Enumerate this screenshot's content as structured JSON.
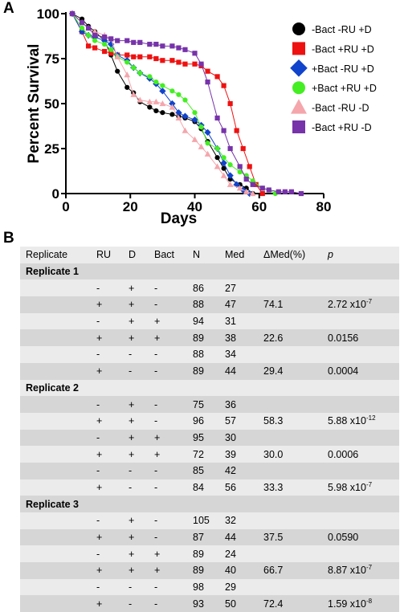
{
  "panels": {
    "a": "A",
    "b": "B"
  },
  "chart_data": {
    "type": "line",
    "xlabel": "Days",
    "ylabel": "Percent Survival",
    "xlim": [
      0,
      80
    ],
    "ylim": [
      0,
      100
    ],
    "xticks": [
      0,
      20,
      40,
      60,
      80
    ],
    "yticks": [
      0,
      25,
      50,
      75,
      100
    ],
    "grid": false,
    "legend": "right",
    "series": [
      {
        "name": "-Bact -RU +D",
        "color": "#000000",
        "marker": "circle",
        "x": [
          2,
          5,
          7,
          9,
          12,
          14,
          16,
          19,
          21,
          23,
          26,
          28,
          30,
          33,
          35,
          37,
          40,
          42,
          44,
          47,
          49,
          51,
          54,
          56,
          58
        ],
        "y": [
          100,
          97,
          93,
          90,
          85,
          77,
          68,
          59,
          56,
          51,
          48,
          46,
          45,
          44,
          43,
          42,
          40,
          36,
          29,
          20,
          14,
          8,
          5,
          3,
          0
        ]
      },
      {
        "name": "-Bact +RU +D",
        "color": "#ee1111",
        "marker": "square",
        "x": [
          2,
          5,
          7,
          9,
          12,
          14,
          16,
          19,
          21,
          23,
          26,
          28,
          30,
          33,
          35,
          37,
          40,
          42,
          44,
          47,
          49,
          51,
          53,
          55,
          57,
          59,
          61
        ],
        "y": [
          100,
          90,
          82,
          81,
          79,
          78,
          77,
          77,
          76,
          76,
          76,
          75,
          74,
          74,
          73,
          72,
          72,
          71,
          68,
          65,
          60,
          50,
          35,
          25,
          15,
          5,
          0
        ]
      },
      {
        "name": "+Bact -RU +D",
        "color": "#1144cc",
        "marker": "diamond",
        "x": [
          2,
          5,
          7,
          9,
          12,
          14,
          16,
          19,
          21,
          23,
          26,
          28,
          30,
          33,
          35,
          37,
          40,
          42,
          44,
          47,
          49,
          51,
          53,
          55,
          57
        ],
        "y": [
          100,
          90,
          88,
          87,
          85,
          83,
          77,
          74,
          70,
          67,
          64,
          61,
          57,
          50,
          45,
          43,
          41,
          38,
          34,
          25,
          17,
          10,
          5,
          2,
          0
        ]
      },
      {
        "name": "+Bact +RU +D",
        "color": "#44ee22",
        "marker": "circle",
        "x": [
          2,
          5,
          7,
          9,
          12,
          14,
          16,
          19,
          21,
          23,
          26,
          28,
          30,
          33,
          35,
          37,
          40,
          42,
          44,
          47,
          49,
          51,
          54,
          56,
          58,
          61,
          63,
          65
        ],
        "y": [
          100,
          92,
          88,
          85,
          83,
          80,
          76,
          73,
          70,
          67,
          65,
          62,
          60,
          57,
          55,
          52,
          45,
          37,
          28,
          25,
          20,
          16,
          12,
          10,
          7,
          3,
          2,
          0
        ]
      },
      {
        "name": "-Bact -RU -D",
        "color": "#f4a6ac",
        "marker": "triangle",
        "x": [
          2,
          5,
          7,
          9,
          12,
          14,
          16,
          19,
          21,
          23,
          26,
          28,
          30,
          33,
          35,
          37,
          40,
          42,
          44,
          47,
          49,
          51,
          54,
          56,
          58
        ],
        "y": [
          100,
          95,
          92,
          90,
          88,
          86,
          76,
          66,
          55,
          52,
          51,
          51,
          50,
          48,
          42,
          35,
          30,
          26,
          22,
          15,
          10,
          5,
          3,
          1,
          0
        ]
      },
      {
        "name": "-Bact +RU -D",
        "color": "#7733aa",
        "marker": "square",
        "x": [
          2,
          5,
          7,
          9,
          12,
          14,
          16,
          19,
          21,
          23,
          26,
          28,
          30,
          33,
          35,
          37,
          40,
          42,
          44,
          47,
          49,
          51,
          54,
          56,
          58,
          61,
          63,
          66,
          68,
          70,
          73
        ],
        "y": [
          100,
          95,
          92,
          88,
          87,
          86,
          85,
          85,
          84,
          84,
          83,
          83,
          82,
          82,
          81,
          80,
          78,
          72,
          62,
          42,
          35,
          25,
          15,
          8,
          5,
          3,
          2,
          1,
          1,
          1,
          0
        ]
      }
    ]
  },
  "table": {
    "headers": [
      "Replicate",
      "RU",
      "D",
      "Bact",
      "N",
      "Med",
      "ΔMed(%)",
      "p"
    ],
    "replicates": [
      {
        "label": "Replicate 1",
        "rows": [
          {
            "ru": "-",
            "d": "+",
            "bact": "-",
            "n": "86",
            "med": "27",
            "dmed": "",
            "p_base": "",
            "p_exp": ""
          },
          {
            "ru": "+",
            "d": "+",
            "bact": "-",
            "n": "88",
            "med": "47",
            "dmed": "74.1",
            "p_base": "2.72 x10",
            "p_exp": "-7"
          },
          {
            "ru": "-",
            "d": "+",
            "bact": "+",
            "n": "94",
            "med": "31",
            "dmed": "",
            "p_base": "",
            "p_exp": ""
          },
          {
            "ru": "+",
            "d": "+",
            "bact": "+",
            "n": "89",
            "med": "38",
            "dmed": "22.6",
            "p_base": "0.0156",
            "p_exp": ""
          },
          {
            "ru": "-",
            "d": "-",
            "bact": "-",
            "n": "88",
            "med": "34",
            "dmed": "",
            "p_base": "",
            "p_exp": ""
          },
          {
            "ru": "+",
            "d": "-",
            "bact": "-",
            "n": "89",
            "med": "44",
            "dmed": "29.4",
            "p_base": "0.0004",
            "p_exp": ""
          }
        ]
      },
      {
        "label": "Replicate 2",
        "rows": [
          {
            "ru": "-",
            "d": "+",
            "bact": "-",
            "n": "75",
            "med": "36",
            "dmed": "",
            "p_base": "",
            "p_exp": ""
          },
          {
            "ru": "+",
            "d": "+",
            "bact": "-",
            "n": "96",
            "med": "57",
            "dmed": "58.3",
            "p_base": "5.88 x10",
            "p_exp": "-12"
          },
          {
            "ru": "-",
            "d": "+",
            "bact": "+",
            "n": "95",
            "med": "30",
            "dmed": "",
            "p_base": "",
            "p_exp": ""
          },
          {
            "ru": "+",
            "d": "+",
            "bact": "+",
            "n": "72",
            "med": "39",
            "dmed": "30.0",
            "p_base": "0.0006",
            "p_exp": ""
          },
          {
            "ru": "-",
            "d": "-",
            "bact": "-",
            "n": "85",
            "med": "42",
            "dmed": "",
            "p_base": "",
            "p_exp": ""
          },
          {
            "ru": "+",
            "d": "-",
            "bact": "-",
            "n": "84",
            "med": "56",
            "dmed": "33.3",
            "p_base": "5.98 x10",
            "p_exp": "-7"
          }
        ]
      },
      {
        "label": "Replicate 3",
        "rows": [
          {
            "ru": "-",
            "d": "+",
            "bact": "-",
            "n": "105",
            "med": "32",
            "dmed": "",
            "p_base": "",
            "p_exp": ""
          },
          {
            "ru": "+",
            "d": "+",
            "bact": "-",
            "n": "87",
            "med": "44",
            "dmed": "37.5",
            "p_base": "0.0590",
            "p_exp": ""
          },
          {
            "ru": "-",
            "d": "+",
            "bact": "+",
            "n": "89",
            "med": "24",
            "dmed": "",
            "p_base": "",
            "p_exp": ""
          },
          {
            "ru": "+",
            "d": "+",
            "bact": "+",
            "n": "89",
            "med": "40",
            "dmed": "66.7",
            "p_base": "8.87 x10",
            "p_exp": "-7"
          },
          {
            "ru": "-",
            "d": "-",
            "bact": "-",
            "n": "98",
            "med": "29",
            "dmed": "",
            "p_base": "",
            "p_exp": ""
          },
          {
            "ru": "+",
            "d": "-",
            "bact": "-",
            "n": "93",
            "med": "50",
            "dmed": "72.4",
            "p_base": "1.59 x10",
            "p_exp": "-8"
          }
        ]
      }
    ]
  }
}
